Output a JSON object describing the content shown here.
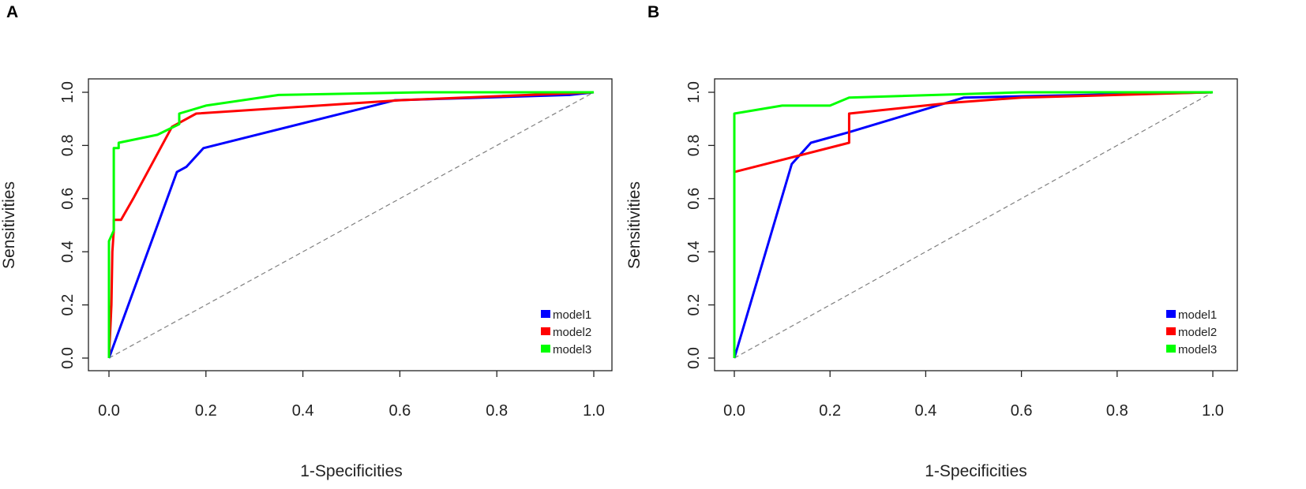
{
  "chart_data": [
    {
      "type": "line",
      "panel_label": "A",
      "xlabel": "1-Specificities",
      "ylabel": "Sensitivities",
      "xlim": [
        0,
        1
      ],
      "ylim": [
        0,
        1
      ],
      "xticks": [
        "0.0",
        "0.2",
        "0.4",
        "0.6",
        "0.8",
        "1.0"
      ],
      "yticks": [
        "0.0",
        "0.2",
        "0.4",
        "0.6",
        "0.8",
        "1.0"
      ],
      "grid": false,
      "legend_position": "bottom-right",
      "reference_line": {
        "style": "dashed",
        "color": "#808080",
        "points": [
          [
            0,
            0
          ],
          [
            1,
            1
          ]
        ]
      },
      "series": [
        {
          "name": "model1",
          "color": "#0000ff",
          "points": [
            [
              0,
              0
            ],
            [
              0.14,
              0.7
            ],
            [
              0.16,
              0.72
            ],
            [
              0.195,
              0.79
            ],
            [
              0.59,
              0.97
            ],
            [
              0.95,
              0.99
            ],
            [
              1,
              1
            ]
          ]
        },
        {
          "name": "model2",
          "color": "#ff0000",
          "points": [
            [
              0,
              0
            ],
            [
              0.005,
              0.2
            ],
            [
              0.007,
              0.4
            ],
            [
              0.01,
              0.48
            ],
            [
              0.01,
              0.52
            ],
            [
              0.025,
              0.52
            ],
            [
              0.05,
              0.6
            ],
            [
              0.13,
              0.87
            ],
            [
              0.18,
              0.92
            ],
            [
              0.6,
              0.97
            ],
            [
              1,
              1
            ]
          ]
        },
        {
          "name": "model3",
          "color": "#00ff00",
          "points": [
            [
              0,
              0
            ],
            [
              0,
              0.44
            ],
            [
              0.01,
              0.48
            ],
            [
              0.01,
              0.79
            ],
            [
              0.02,
              0.79
            ],
            [
              0.02,
              0.81
            ],
            [
              0.1,
              0.84
            ],
            [
              0.145,
              0.88
            ],
            [
              0.145,
              0.92
            ],
            [
              0.2,
              0.95
            ],
            [
              0.35,
              0.99
            ],
            [
              0.65,
              1.0
            ],
            [
              1,
              1
            ]
          ]
        }
      ]
    },
    {
      "type": "line",
      "panel_label": "B",
      "xlabel": "1-Specificities",
      "ylabel": "Sensitivities",
      "xlim": [
        0,
        1
      ],
      "ylim": [
        0,
        1
      ],
      "xticks": [
        "0.0",
        "0.2",
        "0.4",
        "0.6",
        "0.8",
        "1.0"
      ],
      "yticks": [
        "0.0",
        "0.2",
        "0.4",
        "0.6",
        "0.8",
        "1.0"
      ],
      "grid": false,
      "legend_position": "bottom-right",
      "reference_line": {
        "style": "dashed",
        "color": "#808080",
        "points": [
          [
            0,
            0
          ],
          [
            1,
            1
          ]
        ]
      },
      "series": [
        {
          "name": "model1",
          "color": "#0000ff",
          "points": [
            [
              0,
              0
            ],
            [
              0.12,
              0.73
            ],
            [
              0.16,
              0.81
            ],
            [
              0.24,
              0.85
            ],
            [
              0.48,
              0.98
            ],
            [
              1,
              1
            ]
          ]
        },
        {
          "name": "model2",
          "color": "#ff0000",
          "points": [
            [
              0,
              0.7
            ],
            [
              0.24,
              0.81
            ],
            [
              0.24,
              0.92
            ],
            [
              0.45,
              0.96
            ],
            [
              0.6,
              0.98
            ],
            [
              1,
              1
            ]
          ]
        },
        {
          "name": "model3",
          "color": "#00ff00",
          "points": [
            [
              0,
              0
            ],
            [
              0,
              0.92
            ],
            [
              0.1,
              0.95
            ],
            [
              0.2,
              0.95
            ],
            [
              0.24,
              0.98
            ],
            [
              0.6,
              1.0
            ],
            [
              1,
              1
            ]
          ]
        }
      ]
    }
  ]
}
